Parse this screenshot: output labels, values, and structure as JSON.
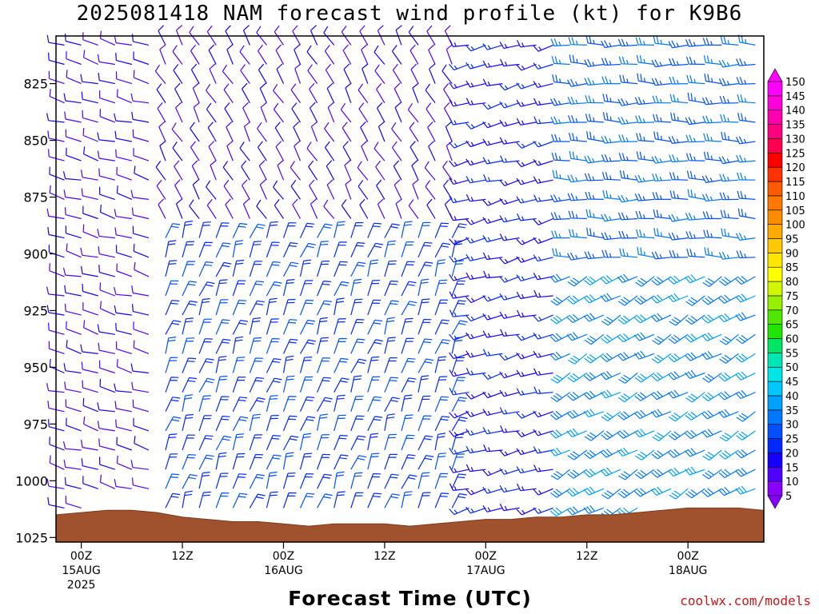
{
  "title": "2025081418 NAM forecast wind profile (kt) for K9B6",
  "xlabel": "Forecast Time (UTC)",
  "credit": "coolwx.com/models",
  "chart_data": {
    "type": "wind-barb-time-height",
    "title": "2025081418 NAM forecast wind profile (kt) for K9B6",
    "xlabel": "Forecast Time (UTC)",
    "ylabel": "",
    "y_axis": {
      "reversed": true,
      "range": [
        804,
        1027
      ],
      "ticks": [
        825,
        850,
        875,
        900,
        925,
        950,
        975,
        1000,
        1025
      ]
    },
    "x_axis": {
      "range_hours": [
        -3,
        81
      ],
      "ticks": [
        {
          "hour": 0,
          "label": "00Z",
          "date": "15AUG",
          "year": "2025"
        },
        {
          "hour": 12,
          "label": "12Z",
          "date": "",
          "year": ""
        },
        {
          "hour": 24,
          "label": "00Z",
          "date": "16AUG",
          "year": ""
        },
        {
          "hour": 36,
          "label": "12Z",
          "date": "",
          "year": ""
        },
        {
          "hour": 48,
          "label": "00Z",
          "date": "17AUG",
          "year": ""
        },
        {
          "hour": 60,
          "label": "12Z",
          "date": "",
          "year": ""
        },
        {
          "hour": 72,
          "label": "00Z",
          "date": "18AUG",
          "year": ""
        }
      ]
    },
    "surface_pressure_mb": [
      [
        -3,
        1015
      ],
      [
        0,
        1014
      ],
      [
        3,
        1013
      ],
      [
        6,
        1013
      ],
      [
        9,
        1014
      ],
      [
        12,
        1016
      ],
      [
        15,
        1017
      ],
      [
        18,
        1018
      ],
      [
        21,
        1018
      ],
      [
        24,
        1019
      ],
      [
        27,
        1020
      ],
      [
        30,
        1019
      ],
      [
        33,
        1019
      ],
      [
        36,
        1019
      ],
      [
        39,
        1020
      ],
      [
        42,
        1019
      ],
      [
        45,
        1018
      ],
      [
        48,
        1017
      ],
      [
        51,
        1017
      ],
      [
        54,
        1016
      ],
      [
        57,
        1016
      ],
      [
        60,
        1015
      ],
      [
        63,
        1015
      ],
      [
        66,
        1014
      ],
      [
        69,
        1013
      ],
      [
        72,
        1012
      ],
      [
        75,
        1012
      ],
      [
        78,
        1012
      ],
      [
        81,
        1013
      ]
    ],
    "colorbar": {
      "unit": "kt",
      "levels": [
        5,
        10,
        15,
        20,
        25,
        30,
        35,
        40,
        45,
        50,
        55,
        60,
        65,
        70,
        75,
        80,
        85,
        90,
        95,
        100,
        105,
        110,
        115,
        120,
        125,
        130,
        135,
        140,
        145,
        150
      ],
      "colors": [
        "#8a00ff",
        "#4f00ff",
        "#1400ff",
        "#0028ff",
        "#0050ff",
        "#0078ff",
        "#00a0ff",
        "#00c8ff",
        "#00e6e6",
        "#00e6b4",
        "#00e664",
        "#1ee600",
        "#50e600",
        "#96f000",
        "#d2f500",
        "#ffff00",
        "#ffe600",
        "#ffc800",
        "#ffaa00",
        "#ff8c00",
        "#ff7800",
        "#ff5a00",
        "#ff3200",
        "#ff0000",
        "#ff0050",
        "#ff0080",
        "#ff00b0",
        "#ff00d8",
        "#ff00ff",
        "#ff00ff"
      ]
    },
    "wind_regimes": [
      {
        "hours": [
          -3,
          9
        ],
        "pressure_mb": [
          800,
          1027
        ],
        "direction_deg": 285,
        "speed_kt": 10
      },
      {
        "hours": [
          9,
          46
        ],
        "pressure_mb": [
          800,
          890
        ],
        "direction_deg": 330,
        "speed_kt": 10
      },
      {
        "hours": [
          9,
          46
        ],
        "pressure_mb": [
          890,
          1027
        ],
        "direction_deg": 20,
        "speed_kt": 20
      },
      {
        "hours": [
          46,
          58
        ],
        "pressure_mb": [
          800,
          1027
        ],
        "direction_deg": 255,
        "speed_kt": 15
      },
      {
        "hours": [
          58,
          81
        ],
        "pressure_mb": [
          800,
          910
        ],
        "direction_deg": 270,
        "speed_kt": 25
      },
      {
        "hours": [
          58,
          81
        ],
        "pressure_mb": [
          910,
          1027
        ],
        "direction_deg": 240,
        "speed_kt": 30
      }
    ],
    "grid": false,
    "legend": "right"
  }
}
